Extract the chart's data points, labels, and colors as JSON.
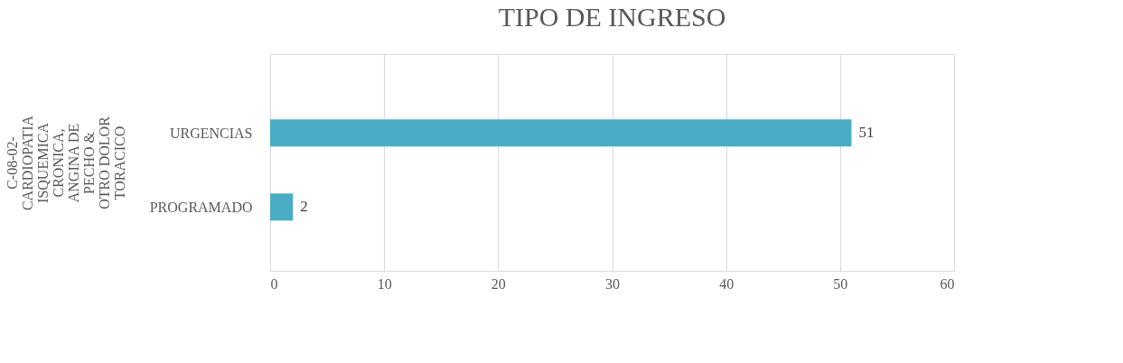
{
  "chart_data": {
    "type": "bar",
    "orientation": "horizontal",
    "title": "TIPO DE INGRESO",
    "ylabel": "C-08-02- CARDIOPATIA ISQUEMICA CRONICA, ANGINA DE PECHO & OTRO DOLOR TORACICO",
    "categories": [
      "URGENCIAS",
      "PROGRAMADO"
    ],
    "series": [
      {
        "color": "#4bacc6",
        "values": [
          51,
          2
        ]
      }
    ],
    "xlim": [
      0,
      60
    ],
    "xticks": [
      0,
      10,
      20,
      30,
      40,
      50,
      60
    ],
    "grid": "x",
    "data_labels": true,
    "legend": false
  }
}
